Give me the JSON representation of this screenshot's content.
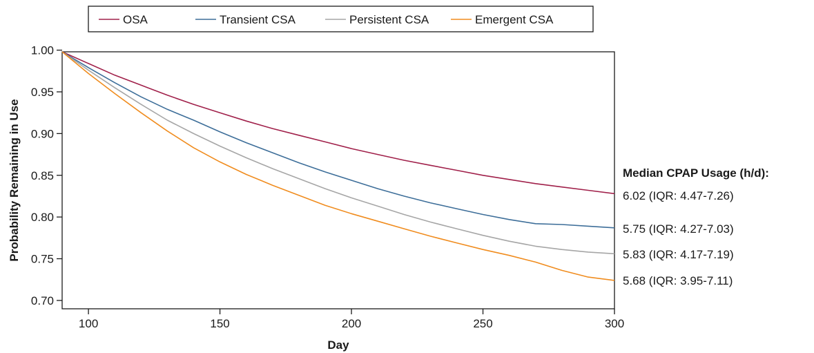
{
  "chart_data": {
    "type": "line",
    "xlabel": "Day",
    "ylabel": "Probability Remaining in Use",
    "xlim": [
      90,
      300
    ],
    "ylim": [
      0.69,
      1.0
    ],
    "x_ticks": [
      100,
      150,
      200,
      250,
      300
    ],
    "y_ticks": [
      1.0,
      0.95,
      0.9,
      0.85,
      0.8,
      0.75,
      0.7
    ],
    "y_tick_labels": [
      "1.00",
      "0.95",
      "0.90",
      "0.85",
      "0.80",
      "0.75",
      "0.70"
    ],
    "grid": false,
    "legend_position": "top-center",
    "series": [
      {
        "name": "OSA",
        "color": "#a0204a",
        "x": [
          90,
          100,
          110,
          120,
          130,
          140,
          150,
          160,
          170,
          180,
          190,
          200,
          210,
          220,
          230,
          240,
          250,
          260,
          270,
          280,
          290,
          300
        ],
        "y": [
          0.998,
          0.984,
          0.97,
          0.958,
          0.946,
          0.935,
          0.925,
          0.915,
          0.906,
          0.898,
          0.89,
          0.882,
          0.875,
          0.868,
          0.862,
          0.856,
          0.85,
          0.845,
          0.84,
          0.836,
          0.832,
          0.828
        ]
      },
      {
        "name": "Transient CSA",
        "color": "#3d6e99",
        "x": [
          90,
          100,
          110,
          120,
          130,
          140,
          150,
          160,
          170,
          180,
          190,
          200,
          210,
          220,
          230,
          240,
          250,
          260,
          270,
          280,
          290,
          300
        ],
        "y": [
          0.998,
          0.979,
          0.961,
          0.944,
          0.929,
          0.916,
          0.902,
          0.889,
          0.877,
          0.865,
          0.854,
          0.844,
          0.834,
          0.825,
          0.817,
          0.81,
          0.803,
          0.797,
          0.792,
          0.791,
          0.789,
          0.787
        ]
      },
      {
        "name": "Persistent CSA",
        "color": "#a6a6a6",
        "x": [
          90,
          100,
          110,
          120,
          130,
          140,
          150,
          160,
          170,
          180,
          190,
          200,
          210,
          220,
          230,
          240,
          250,
          260,
          270,
          280,
          290,
          300
        ],
        "y": [
          0.998,
          0.976,
          0.955,
          0.935,
          0.916,
          0.9,
          0.885,
          0.871,
          0.858,
          0.846,
          0.834,
          0.823,
          0.813,
          0.803,
          0.794,
          0.786,
          0.778,
          0.771,
          0.765,
          0.761,
          0.758,
          0.756
        ]
      },
      {
        "name": "Emergent CSA",
        "color": "#f08c1e",
        "x": [
          90,
          100,
          110,
          120,
          130,
          140,
          150,
          160,
          170,
          180,
          190,
          200,
          210,
          220,
          230,
          240,
          250,
          260,
          270,
          280,
          290,
          300
        ],
        "y": [
          0.998,
          0.972,
          0.948,
          0.925,
          0.903,
          0.883,
          0.866,
          0.851,
          0.838,
          0.826,
          0.814,
          0.804,
          0.795,
          0.786,
          0.777,
          0.769,
          0.761,
          0.754,
          0.746,
          0.736,
          0.728,
          0.724
        ]
      }
    ],
    "annotation": {
      "title": "Median CPAP Usage (h/d):",
      "items": [
        "6.02 (IQR: 4.47-7.26)",
        "5.75 (IQR: 4.27-7.03)",
        "5.83 (IQR: 4.17-7.19)",
        "5.68 (IQR: 3.95-7.11)"
      ]
    }
  }
}
